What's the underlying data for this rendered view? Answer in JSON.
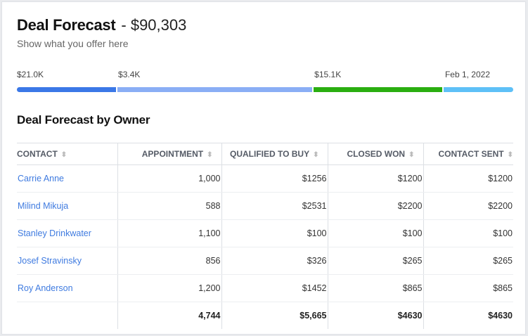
{
  "header": {
    "title": "Deal Forecast",
    "amount": "- $90,303",
    "subtitle": "Show what you offer here"
  },
  "progress": {
    "segments": [
      {
        "label": "$21.0K",
        "color": "#3b78e7",
        "share_percent": 20
      },
      {
        "label": "$3.4K",
        "color": "#8aaef5",
        "share_percent": 39.3
      },
      {
        "label": "$15.1K",
        "color": "#2aae10",
        "share_percent": 26
      },
      {
        "label": "Feb 1, 2022",
        "color": "#5ec0f7",
        "share_percent": 14.1
      }
    ]
  },
  "table": {
    "title": "Deal Forecast by Owner",
    "columns": [
      "CONTACT",
      "APPOINTMENT",
      "QUALIFIED TO BUY",
      "CLOSED WON",
      "CONTACT SENT"
    ],
    "sort_icon": "sort-arrows-icon",
    "rows": [
      [
        "Carrie Anne",
        "1,000",
        "$1256",
        "$1200",
        "$1200"
      ],
      [
        "Milind Mikuja",
        "588",
        "$2531",
        "$2200",
        "$2200"
      ],
      [
        "Stanley Drinkwater",
        "1,100",
        "$100",
        "$100",
        "$100"
      ],
      [
        "Josef Stravinsky",
        "856",
        "$326",
        "$265",
        "$265"
      ],
      [
        "Roy Anderson",
        "1,200",
        "$1452",
        "$865",
        "$865"
      ]
    ],
    "totals": [
      "",
      "4,744",
      "$5,665",
      "$4630",
      "$4630"
    ]
  }
}
